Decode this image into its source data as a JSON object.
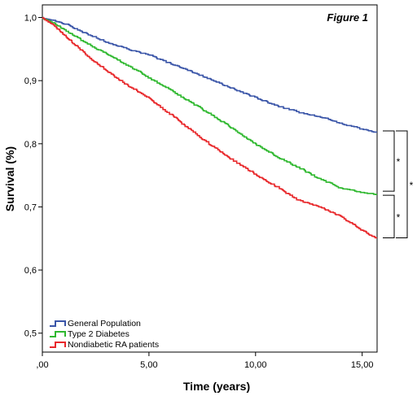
{
  "chart_data": {
    "type": "line",
    "title": "Figure 1",
    "xlabel": "Time (years)",
    "ylabel": "Survival (%)",
    "xlim": [
      0,
      15.7
    ],
    "ylim": [
      0.47,
      1.02
    ],
    "xticks": [
      0,
      5,
      10,
      15
    ],
    "xtick_labels": [
      ",00",
      "5,00",
      "10,00",
      "15,00"
    ],
    "yticks": [
      0.5,
      0.6,
      0.7,
      0.8,
      0.9,
      1.0
    ],
    "ytick_labels": [
      "0,5",
      "0,6",
      "0,7",
      "0,8",
      "0,9",
      "1,0"
    ],
    "legend_position": "bottom-left",
    "significance_marks": [
      "*",
      "*",
      "*"
    ],
    "series": [
      {
        "name": "General Population",
        "color": "#3a55a8",
        "x": [
          0,
          0.5,
          1,
          2,
          3,
          4,
          5,
          6,
          7,
          8,
          9,
          10,
          11,
          12,
          13,
          14,
          15,
          15.7
        ],
        "y": [
          1.0,
          0.997,
          0.991,
          0.976,
          0.962,
          0.951,
          0.941,
          0.928,
          0.915,
          0.901,
          0.887,
          0.874,
          0.861,
          0.851,
          0.844,
          0.833,
          0.824,
          0.819
        ]
      },
      {
        "name": "Type 2 Diabetes",
        "color": "#2fb82f",
        "x": [
          0,
          0.5,
          1,
          2,
          3,
          4,
          5,
          6,
          7,
          8,
          9,
          10,
          11,
          12,
          13,
          14,
          15,
          15.7
        ],
        "y": [
          1.0,
          0.993,
          0.982,
          0.961,
          0.943,
          0.925,
          0.905,
          0.886,
          0.865,
          0.845,
          0.823,
          0.8,
          0.78,
          0.763,
          0.745,
          0.73,
          0.724,
          0.721
        ]
      },
      {
        "name": "Nondiabetic RA patients",
        "color": "#e8282b",
        "x": [
          0,
          0.5,
          1,
          2,
          3,
          4,
          5,
          6,
          7,
          8,
          9,
          10,
          11,
          12,
          13,
          14,
          15,
          15.7
        ],
        "y": [
          1.0,
          0.99,
          0.973,
          0.943,
          0.916,
          0.893,
          0.873,
          0.847,
          0.821,
          0.796,
          0.773,
          0.752,
          0.732,
          0.711,
          0.701,
          0.685,
          0.663,
          0.651
        ]
      }
    ]
  }
}
